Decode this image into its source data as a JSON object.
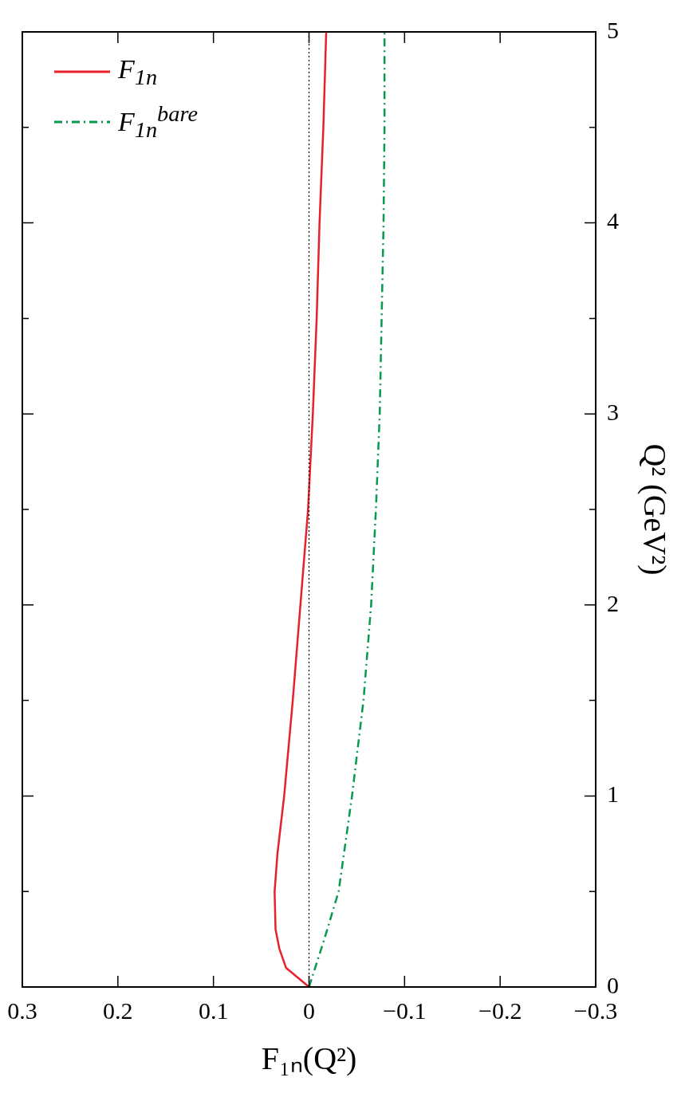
{
  "chart_data": {
    "type": "line",
    "xlabel": "F₁ₙ(Q²)",
    "ylabel": "Q² (GeV²)",
    "xlim": [
      0.3,
      -0.3
    ],
    "ylim": [
      0,
      5
    ],
    "xticks": [
      -0.3,
      -0.2,
      -0.1,
      0,
      0.1,
      0.2,
      0.3
    ],
    "yticks": [
      0,
      {
        "value": 0.5,
        "label": null
      },
      1,
      {
        "value": 1.5,
        "label": null
      },
      2,
      {
        "value": 2.5,
        "label": null
      },
      3,
      {
        "value": 3.5,
        "label": null
      },
      4,
      {
        "value": 4.5,
        "label": null
      },
      5
    ],
    "grid": false,
    "legend": "top left",
    "marker": "none",
    "ref_lines": [
      {
        "axis": "x",
        "value": 0,
        "color": "#000000",
        "line_style": "dotted"
      }
    ],
    "series": [
      {
        "name": "F$_{1n}$",
        "color": "#e8202a",
        "line_style": "solid",
        "x": [
          0,
          0.012,
          0.024,
          0.031,
          0.035,
          0.036,
          0.033,
          0.026,
          0.017,
          0.009,
          0.001,
          -0.004,
          -0.008,
          -0.011,
          -0.015,
          -0.018
        ],
        "values": [
          0,
          0.05,
          0.1,
          0.2,
          0.3,
          0.5,
          0.7,
          1,
          1.5,
          2,
          2.5,
          3,
          3.5,
          4,
          4.5,
          5
        ]
      },
      {
        "name": "F$_{1n}$$^{bare}$",
        "color": "#079a4c",
        "line_style": "dashed",
        "x": [
          0,
          -0.016,
          -0.031,
          -0.045,
          -0.057,
          -0.065,
          -0.07,
          -0.074,
          -0.076,
          -0.078,
          -0.079,
          -0.079
        ],
        "values": [
          0,
          0.25,
          0.5,
          1,
          1.5,
          2,
          2.5,
          3,
          3.5,
          4,
          4.5,
          5
        ]
      }
    ]
  }
}
